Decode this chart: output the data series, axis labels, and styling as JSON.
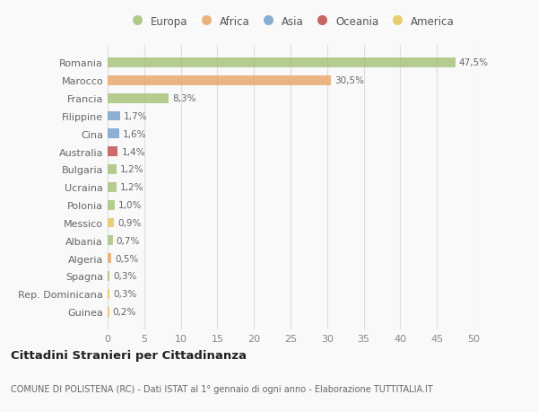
{
  "categories": [
    "Romania",
    "Marocco",
    "Francia",
    "Filippine",
    "Cina",
    "Australia",
    "Bulgaria",
    "Ucraina",
    "Polonia",
    "Messico",
    "Albania",
    "Algeria",
    "Spagna",
    "Rep. Dominicana",
    "Guinea"
  ],
  "values": [
    47.5,
    30.5,
    8.3,
    1.7,
    1.6,
    1.4,
    1.2,
    1.2,
    1.0,
    0.9,
    0.7,
    0.5,
    0.3,
    0.3,
    0.2
  ],
  "labels": [
    "47,5%",
    "30,5%",
    "8,3%",
    "1,7%",
    "1,6%",
    "1,4%",
    "1,2%",
    "1,2%",
    "1,0%",
    "0,9%",
    "0,7%",
    "0,5%",
    "0,3%",
    "0,3%",
    "0,2%"
  ],
  "colors": [
    "#a8c47e",
    "#e8aa6e",
    "#a8c47e",
    "#7aa4cc",
    "#7aa4cc",
    "#c45555",
    "#a8c47e",
    "#a8c47e",
    "#a8c47e",
    "#e8c860",
    "#a8c47e",
    "#e8aa6e",
    "#a8c47e",
    "#e8c860",
    "#e8c860"
  ],
  "legend_labels": [
    "Europa",
    "Africa",
    "Asia",
    "Oceania",
    "America"
  ],
  "legend_colors": [
    "#a8c47e",
    "#e8aa6e",
    "#7aa4cc",
    "#c45555",
    "#e8c860"
  ],
  "title": "Cittadini Stranieri per Cittadinanza",
  "subtitle": "COMUNE DI POLISTENA (RC) - Dati ISTAT al 1° gennaio di ogni anno - Elaborazione TUTTITALIA.IT",
  "xlim": [
    0,
    50
  ],
  "xticks": [
    0,
    5,
    10,
    15,
    20,
    25,
    30,
    35,
    40,
    45,
    50
  ],
  "background_color": "#f9f9f9",
  "grid_color": "#dddddd",
  "bar_height": 0.55
}
